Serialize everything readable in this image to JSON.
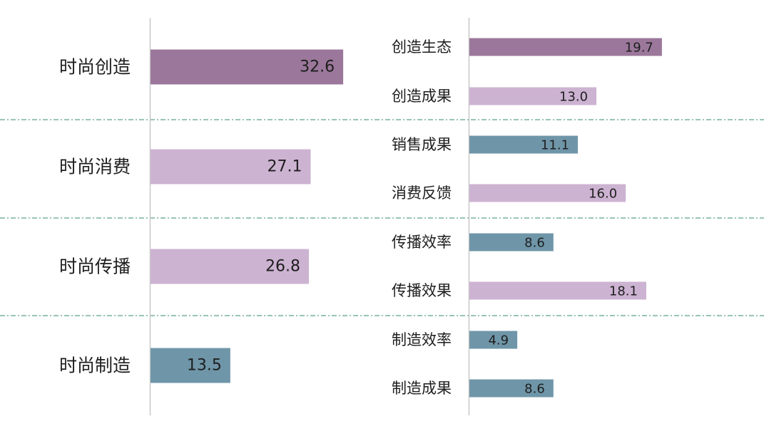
{
  "colors": {
    "dark_purple": "#9b789b",
    "light_purple": "#cdb3d2",
    "steel_blue": "#6f96a8",
    "axis": "#c8c8c8",
    "divider": "#5aa08c",
    "text": "#1e1e1e"
  },
  "chart_data": [
    {
      "type": "bar",
      "orientation": "horizontal",
      "categories": [
        "时尚创造",
        "时尚消费",
        "时尚传播",
        "时尚制造"
      ],
      "values": [
        32.6,
        27.1,
        26.8,
        13.5
      ],
      "bar_colors": [
        "dark_purple",
        "light_purple",
        "light_purple",
        "steel_blue"
      ],
      "data_labels": true,
      "grid": false
    },
    {
      "type": "bar",
      "orientation": "horizontal",
      "categories": [
        "创造生态",
        "创造成果",
        "销售成果",
        "消费反馈",
        "传播效率",
        "传播效果",
        "制造效率",
        "制造成果"
      ],
      "values": [
        19.7,
        13.0,
        11.1,
        16.0,
        8.6,
        18.1,
        4.9,
        8.6
      ],
      "bar_colors": [
        "dark_purple",
        "light_purple",
        "steel_blue",
        "light_purple",
        "steel_blue",
        "light_purple",
        "steel_blue",
        "steel_blue"
      ],
      "data_labels": true,
      "grid": false
    }
  ]
}
